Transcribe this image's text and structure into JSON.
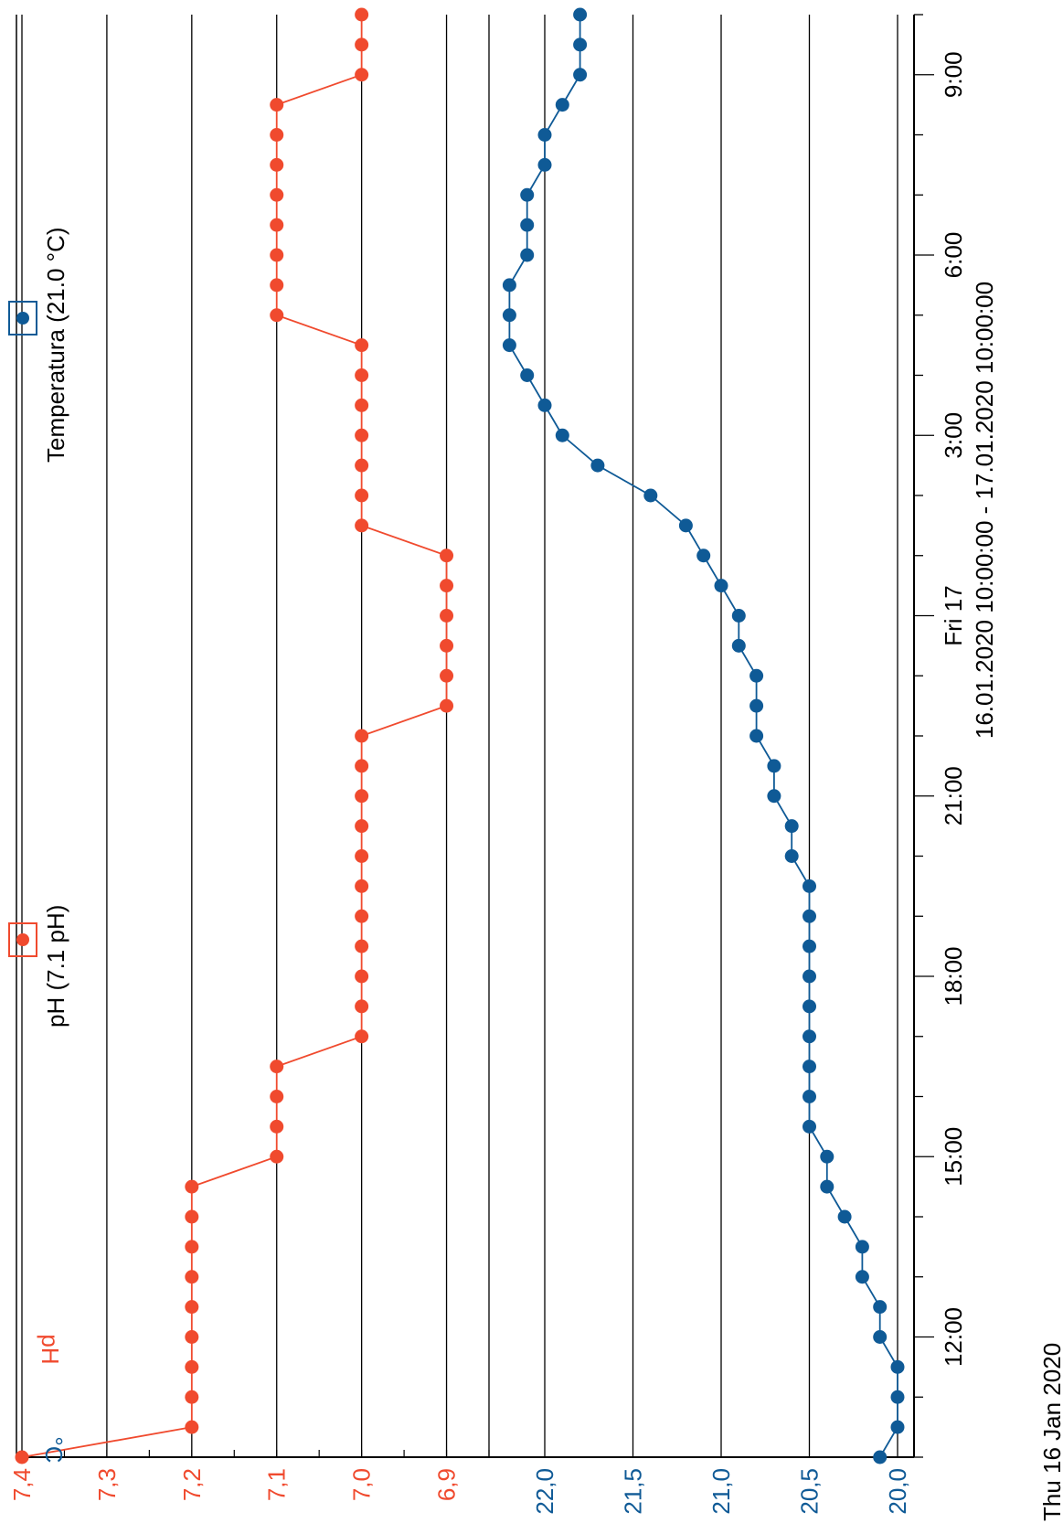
{
  "chart_data": {
    "type": "line",
    "orientation": "rotated 90° counter-clockwise (time axis runs bottom-to-top)",
    "title": "",
    "x_axis": {
      "range_label": "16.01.2020 10:00:00 - 17.01.2020 10:00:00",
      "start_label": "Thu 16 Jan 2020",
      "tick_labels": [
        "12:00",
        "15:00",
        "18:00",
        "21:00",
        "Fri 17",
        "3:00",
        "6:00",
        "9:00"
      ],
      "range": [
        "2020-01-16 10:00",
        "2020-01-17 10:00"
      ]
    },
    "legend": [
      {
        "label": "pH (7.1 pH)",
        "color": "#f04a2e"
      },
      {
        "label": "Temperatura (21.0 °C)",
        "color": "#0f5a96"
      }
    ],
    "series": [
      {
        "name": "pH (7.1 pH)",
        "color": "#f04a2e",
        "ylabel": "pH",
        "ylim": [
          6.85,
          7.4
        ],
        "tick_labels": [
          "6,9",
          "7,0",
          "7,1",
          "7,2",
          "7,3",
          "7,4"
        ],
        "x": [
          "2020-01-16 10:00",
          "2020-01-16 10:30",
          "2020-01-16 11:00",
          "2020-01-16 11:30",
          "2020-01-16 12:00",
          "2020-01-16 12:30",
          "2020-01-16 13:00",
          "2020-01-16 13:30",
          "2020-01-16 14:00",
          "2020-01-16 14:30",
          "2020-01-16 15:00",
          "2020-01-16 15:30",
          "2020-01-16 16:00",
          "2020-01-16 16:30",
          "2020-01-16 17:00",
          "2020-01-16 17:30",
          "2020-01-16 18:00",
          "2020-01-16 18:30",
          "2020-01-16 19:00",
          "2020-01-16 19:30",
          "2020-01-16 20:00",
          "2020-01-16 20:30",
          "2020-01-16 21:00",
          "2020-01-16 21:30",
          "2020-01-16 22:00",
          "2020-01-16 22:30",
          "2020-01-16 23:00",
          "2020-01-16 23:30",
          "2020-01-17 00:00",
          "2020-01-17 00:30",
          "2020-01-17 01:00",
          "2020-01-17 01:30",
          "2020-01-17 02:00",
          "2020-01-17 02:30",
          "2020-01-17 03:00",
          "2020-01-17 03:30",
          "2020-01-17 04:00",
          "2020-01-17 04:30",
          "2020-01-17 05:00",
          "2020-01-17 05:30",
          "2020-01-17 06:00",
          "2020-01-17 06:30",
          "2020-01-17 07:00",
          "2020-01-17 07:30",
          "2020-01-17 08:00",
          "2020-01-17 08:30",
          "2020-01-17 09:00",
          "2020-01-17 09:30",
          "2020-01-17 10:00"
        ],
        "values": [
          7.4,
          7.2,
          7.2,
          7.2,
          7.2,
          7.2,
          7.2,
          7.2,
          7.2,
          7.2,
          7.1,
          7.1,
          7.1,
          7.1,
          7.0,
          7.0,
          7.0,
          7.0,
          7.0,
          7.0,
          7.0,
          7.0,
          7.0,
          7.0,
          7.0,
          6.9,
          6.9,
          6.9,
          6.9,
          6.9,
          6.9,
          7.0,
          7.0,
          7.0,
          7.0,
          7.0,
          7.0,
          7.0,
          7.1,
          7.1,
          7.1,
          7.1,
          7.1,
          7.1,
          7.1,
          7.1,
          7.0,
          7.0,
          7.0
        ]
      },
      {
        "name": "Temperatura (21.0 °C)",
        "color": "#0f5a96",
        "ylabel": "°C",
        "ylim": [
          19.95,
          22.1
        ],
        "tick_labels": [
          "20,0",
          "20,5",
          "21,0",
          "21,5",
          "22,0"
        ],
        "x": [
          "2020-01-16 10:00",
          "2020-01-16 10:30",
          "2020-01-16 11:00",
          "2020-01-16 11:30",
          "2020-01-16 12:00",
          "2020-01-16 12:30",
          "2020-01-16 13:00",
          "2020-01-16 13:30",
          "2020-01-16 14:00",
          "2020-01-16 14:30",
          "2020-01-16 15:00",
          "2020-01-16 15:30",
          "2020-01-16 16:00",
          "2020-01-16 16:30",
          "2020-01-16 17:00",
          "2020-01-16 17:30",
          "2020-01-16 18:00",
          "2020-01-16 18:30",
          "2020-01-16 19:00",
          "2020-01-16 19:30",
          "2020-01-16 20:00",
          "2020-01-16 20:30",
          "2020-01-16 21:00",
          "2020-01-16 21:30",
          "2020-01-16 22:00",
          "2020-01-16 22:30",
          "2020-01-16 23:00",
          "2020-01-16 23:30",
          "2020-01-17 00:00",
          "2020-01-17 00:30",
          "2020-01-17 01:00",
          "2020-01-17 01:30",
          "2020-01-17 02:00",
          "2020-01-17 02:30",
          "2020-01-17 03:00",
          "2020-01-17 03:30",
          "2020-01-17 04:00",
          "2020-01-17 04:30",
          "2020-01-17 05:00",
          "2020-01-17 05:30",
          "2020-01-17 06:00",
          "2020-01-17 06:30",
          "2020-01-17 07:00",
          "2020-01-17 07:30",
          "2020-01-17 08:00",
          "2020-01-17 08:30",
          "2020-01-17 09:00",
          "2020-01-17 09:30",
          "2020-01-17 10:00"
        ],
        "values": [
          20.1,
          20.0,
          20.0,
          20.0,
          20.1,
          20.1,
          20.2,
          20.2,
          20.3,
          20.4,
          20.4,
          20.5,
          20.5,
          20.5,
          20.5,
          20.5,
          20.5,
          20.5,
          20.5,
          20.5,
          20.6,
          20.6,
          20.7,
          20.7,
          20.8,
          20.8,
          20.8,
          20.9,
          20.9,
          21.0,
          21.1,
          21.2,
          21.4,
          21.7,
          21.9,
          22.0,
          22.1,
          22.2,
          22.2,
          22.2,
          22.1,
          22.1,
          22.1,
          22.0,
          22.0,
          21.9,
          21.8,
          21.8,
          21.8
        ]
      }
    ],
    "grid": true
  }
}
